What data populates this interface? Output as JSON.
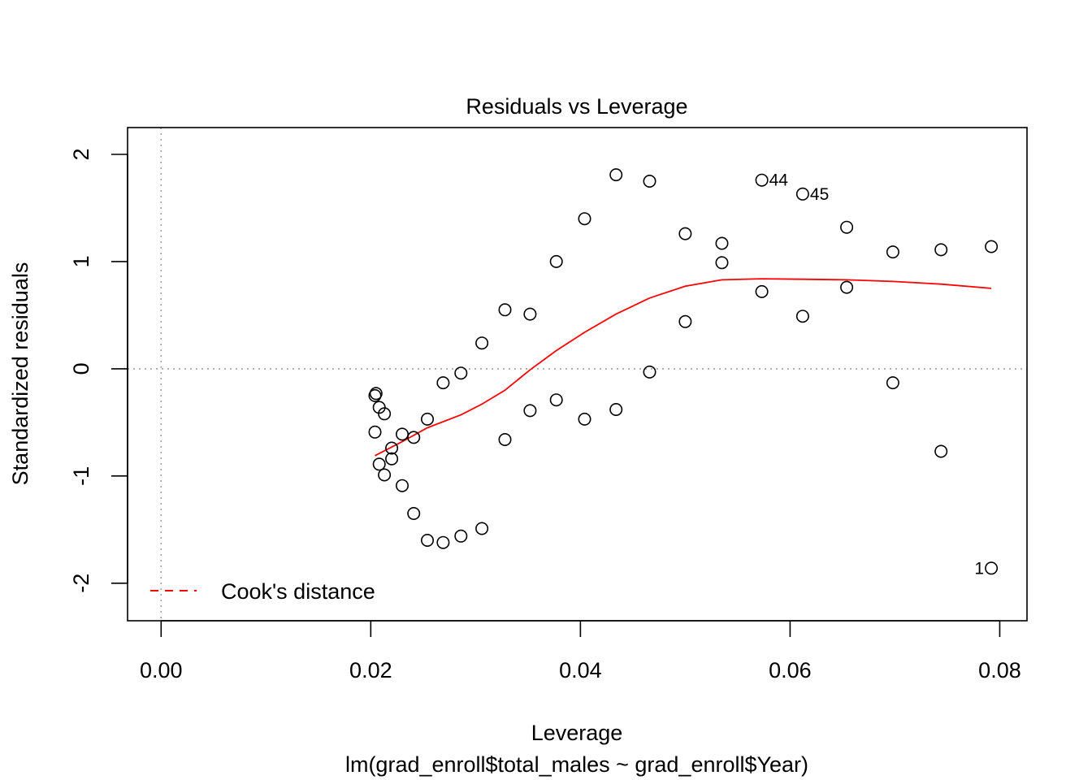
{
  "chart_data": {
    "type": "scatter",
    "title": "Residuals vs Leverage",
    "xlabel": "Leverage",
    "ylabel": "Standardized residuals",
    "subtitle": "lm(grad_enroll$total_males ~ grad_enroll$Year)",
    "xlim": [
      -0.0032,
      0.0826
    ],
    "ylim": [
      -2.35,
      2.25
    ],
    "x_ticks": [
      0,
      0.02,
      0.04,
      0.06,
      0.08
    ],
    "x_tick_labels": [
      "0.00",
      "0.02",
      "0.04",
      "0.06",
      "0.08"
    ],
    "y_ticks": [
      -2,
      -1,
      0,
      1,
      2
    ],
    "y_tick_labels": [
      "-2",
      "-1",
      "0",
      "1",
      "2"
    ],
    "reference_lines": {
      "y": 0,
      "x": 0,
      "style": "dotted",
      "color": "#a0a0a0"
    },
    "points": [
      {
        "x": 0.0205,
        "y": -0.23
      },
      {
        "x": 0.0204,
        "y": -0.25
      },
      {
        "x": 0.0208,
        "y": -0.36
      },
      {
        "x": 0.0213,
        "y": -0.42
      },
      {
        "x": 0.0204,
        "y": -0.59
      },
      {
        "x": 0.0208,
        "y": -0.89
      },
      {
        "x": 0.0213,
        "y": -0.99
      },
      {
        "x": 0.022,
        "y": -0.74
      },
      {
        "x": 0.022,
        "y": -0.84
      },
      {
        "x": 0.023,
        "y": -0.61
      },
      {
        "x": 0.023,
        "y": -1.09
      },
      {
        "x": 0.0241,
        "y": -0.64
      },
      {
        "x": 0.0241,
        "y": -1.35
      },
      {
        "x": 0.0254,
        "y": -0.47
      },
      {
        "x": 0.0254,
        "y": -1.6
      },
      {
        "x": 0.0269,
        "y": -0.13
      },
      {
        "x": 0.0269,
        "y": -1.62
      },
      {
        "x": 0.0286,
        "y": -0.04
      },
      {
        "x": 0.0286,
        "y": -1.56
      },
      {
        "x": 0.0306,
        "y": 0.24
      },
      {
        "x": 0.0306,
        "y": -1.49
      },
      {
        "x": 0.0328,
        "y": 0.55
      },
      {
        "x": 0.0328,
        "y": -0.66
      },
      {
        "x": 0.0352,
        "y": 0.51
      },
      {
        "x": 0.0352,
        "y": -0.39
      },
      {
        "x": 0.0377,
        "y": 1.0
      },
      {
        "x": 0.0377,
        "y": -0.29
      },
      {
        "x": 0.0404,
        "y": 1.4
      },
      {
        "x": 0.0404,
        "y": -0.47
      },
      {
        "x": 0.0434,
        "y": 1.81
      },
      {
        "x": 0.0434,
        "y": -0.38
      },
      {
        "x": 0.0466,
        "y": 1.75
      },
      {
        "x": 0.0466,
        "y": -0.03
      },
      {
        "x": 0.05,
        "y": 1.26
      },
      {
        "x": 0.05,
        "y": 0.44
      },
      {
        "x": 0.0535,
        "y": 1.17
      },
      {
        "x": 0.0535,
        "y": 0.99
      },
      {
        "x": 0.0573,
        "y": 1.76,
        "label": "44"
      },
      {
        "x": 0.0573,
        "y": 0.72
      },
      {
        "x": 0.0612,
        "y": 1.63,
        "label": "45"
      },
      {
        "x": 0.0612,
        "y": 0.49
      },
      {
        "x": 0.0654,
        "y": 1.32
      },
      {
        "x": 0.0654,
        "y": 0.76
      },
      {
        "x": 0.0698,
        "y": 1.09
      },
      {
        "x": 0.0698,
        "y": -0.13
      },
      {
        "x": 0.0744,
        "y": 1.11
      },
      {
        "x": 0.0744,
        "y": -0.77
      },
      {
        "x": 0.0792,
        "y": 1.14
      },
      {
        "x": 0.0792,
        "y": -1.86,
        "label": "1"
      }
    ],
    "smooth_line": {
      "color": "#ff0000",
      "x": [
        0.0204,
        0.023,
        0.0254,
        0.0286,
        0.0306,
        0.0328,
        0.0352,
        0.0377,
        0.0404,
        0.0434,
        0.0466,
        0.05,
        0.0535,
        0.0573,
        0.0612,
        0.0654,
        0.0698,
        0.0744,
        0.0792
      ],
      "y": [
        -0.81,
        -0.68,
        -0.55,
        -0.43,
        -0.33,
        -0.2,
        -0.01,
        0.17,
        0.34,
        0.51,
        0.66,
        0.77,
        0.83,
        0.84,
        0.835,
        0.83,
        0.815,
        0.79,
        0.75
      ]
    },
    "legend": {
      "position": "bottomleft",
      "entries": [
        {
          "label": "Cook's distance",
          "color": "#ff0000",
          "style": "dashed"
        }
      ]
    }
  }
}
